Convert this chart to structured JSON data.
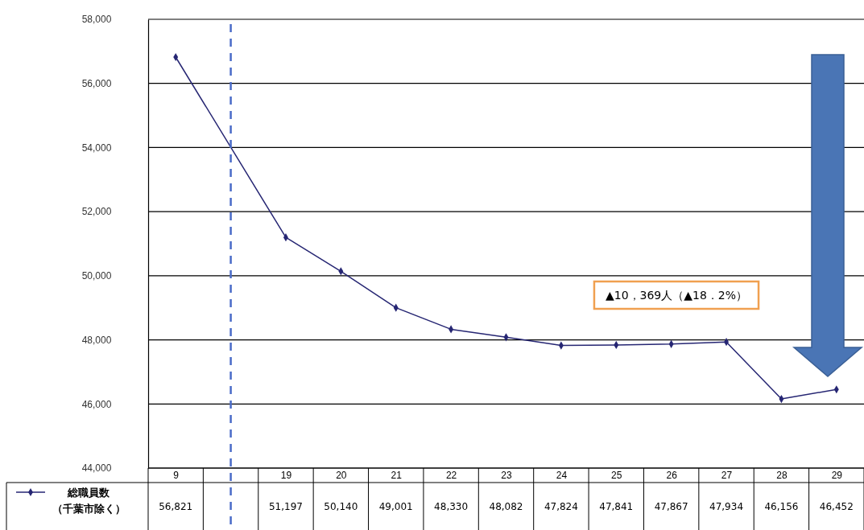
{
  "chart_data": {
    "type": "line",
    "categories": [
      "9",
      null,
      "19",
      "20",
      "21",
      "22",
      "23",
      "24",
      "25",
      "26",
      "27",
      "28",
      "29"
    ],
    "series": [
      {
        "name": "総職員数（千葉市除く）",
        "color": "#262673",
        "values": [
          56821,
          null,
          51197,
          50140,
          49001,
          48330,
          48082,
          47824,
          47841,
          47867,
          47934,
          46156,
          46452
        ],
        "value_labels": [
          "56,821",
          null,
          "51,197",
          "50,140",
          "49,001",
          "48,330",
          "48,082",
          "47,824",
          "47,841",
          "47,867",
          "47,934",
          "46,156",
          "46,452"
        ]
      }
    ],
    "ylim": [
      44000,
      58000
    ],
    "yticks": [
      {
        "value": 44000,
        "label": "44,000"
      },
      {
        "value": 46000,
        "label": "46,000"
      },
      {
        "value": 48000,
        "label": "48,000"
      },
      {
        "value": 50000,
        "label": "50,000"
      },
      {
        "value": 52000,
        "label": "52,000"
      },
      {
        "value": 54000,
        "label": "54,000"
      },
      {
        "value": 56000,
        "label": "56,000"
      },
      {
        "value": 58000,
        "label": "58,000"
      }
    ],
    "grid": "y",
    "marker": "diamond",
    "line_style": "solid",
    "legend": "bottom left",
    "annotations": [
      "▲10，369人（▲18．2%）"
    ]
  }
}
